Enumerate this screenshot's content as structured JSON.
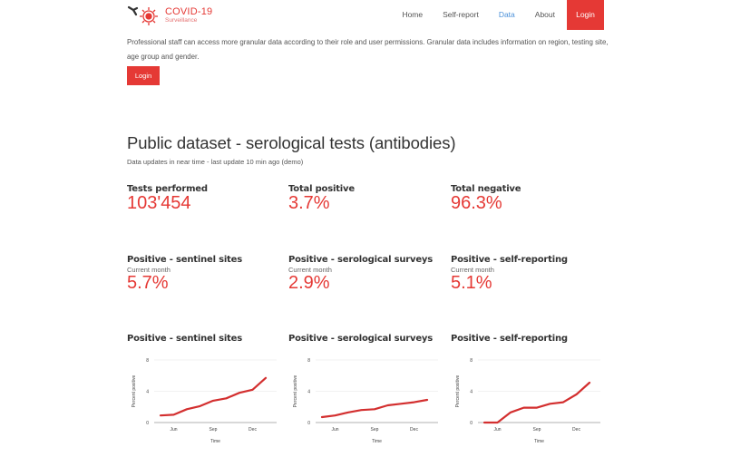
{
  "brand": {
    "title": "COVID-19",
    "subtitle": "Surveillance",
    "logo_icon": "virus-antibody-icon",
    "color": "#e53935"
  },
  "nav": {
    "items": [
      {
        "label": "Home",
        "active": false
      },
      {
        "label": "Self-report",
        "active": false
      },
      {
        "label": "Data",
        "active": true
      },
      {
        "label": "About",
        "active": false
      }
    ],
    "login_label": "Login"
  },
  "intro": {
    "text": "Professional staff can access more granular data according to their role and user permissions. Granular data includes information on region, testing site, age group and gender.",
    "login_label": "Login"
  },
  "page": {
    "title": "Public dataset - serological tests (antibodies)",
    "subtitle": "Data updates in near time - last update 10 min ago (demo)"
  },
  "stats": [
    {
      "label": "Tests performed",
      "value": "103'454"
    },
    {
      "label": "Total positive",
      "value": "3.7%"
    },
    {
      "label": "Total negative",
      "value": "96.3%"
    }
  ],
  "monthly": [
    {
      "label": "Positive - sentinel sites",
      "sub": "Current month",
      "value": "5.7%"
    },
    {
      "label": "Positive - serological surveys",
      "sub": "Current month",
      "value": "2.9%"
    },
    {
      "label": "Positive - self-reporting",
      "sub": "Current month",
      "value": "5.1%"
    }
  ],
  "colors": {
    "accent": "#e53935",
    "nav_active": "#4a90d9",
    "line": "#d32f2f"
  },
  "chart_data": [
    {
      "type": "line",
      "title": "Positive - sentinel sites",
      "xlabel": "Time",
      "ylabel": "Percent positive",
      "ylim": [
        0,
        8
      ],
      "yticks": [
        0,
        4,
        8
      ],
      "xticks": [
        "Jun",
        "Sep",
        "Dec"
      ],
      "x": [
        "May",
        "Jun",
        "Jul",
        "Aug",
        "Sep",
        "Oct",
        "Nov",
        "Dec",
        "Jan"
      ],
      "values": [
        0.9,
        1.0,
        1.7,
        2.1,
        2.8,
        3.1,
        3.8,
        4.2,
        5.7
      ],
      "grid": true
    },
    {
      "type": "line",
      "title": "Positive - serological surveys",
      "xlabel": "Time",
      "ylabel": "Percent positive",
      "ylim": [
        0,
        8
      ],
      "yticks": [
        0,
        4,
        8
      ],
      "xticks": [
        "Jun",
        "Sep",
        "Dec"
      ],
      "x": [
        "May",
        "Jun",
        "Jul",
        "Aug",
        "Sep",
        "Oct",
        "Nov",
        "Dec",
        "Jan"
      ],
      "values": [
        0.7,
        0.9,
        1.3,
        1.6,
        1.7,
        2.2,
        2.4,
        2.6,
        2.9
      ],
      "grid": true
    },
    {
      "type": "line",
      "title": "Positive - self-reporting",
      "xlabel": "Time",
      "ylabel": "Percent positive",
      "ylim": [
        0,
        8
      ],
      "yticks": [
        0,
        4,
        8
      ],
      "xticks": [
        "Jun",
        "Sep",
        "Dec"
      ],
      "x": [
        "May",
        "Jun",
        "Jul",
        "Aug",
        "Sep",
        "Oct",
        "Nov",
        "Dec",
        "Jan"
      ],
      "values": [
        0.0,
        0.0,
        1.3,
        1.9,
        1.9,
        2.4,
        2.6,
        3.6,
        5.1
      ],
      "grid": true
    }
  ]
}
